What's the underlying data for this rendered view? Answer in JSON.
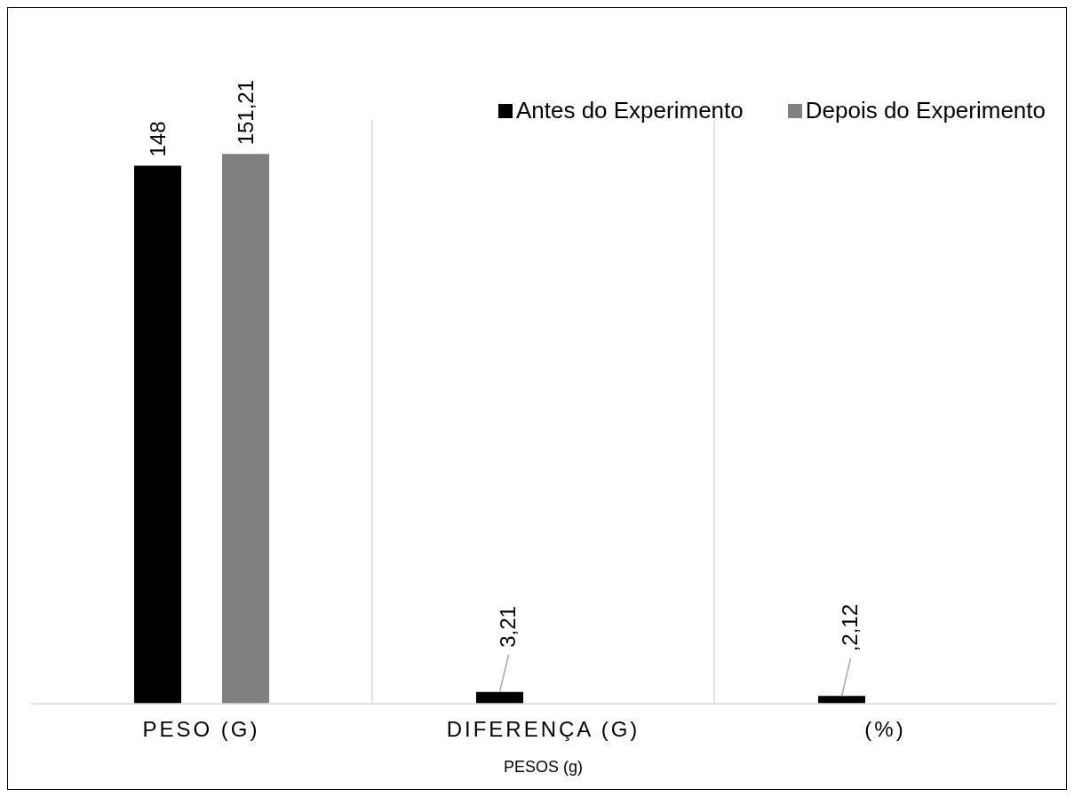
{
  "chart_data": {
    "type": "bar",
    "xlabel": "PESOS (g)",
    "categories": [
      "PESO (G)",
      "DIFERENÇA (G)",
      "(%)"
    ],
    "series": [
      {
        "name": "Antes do Experimento",
        "color": "#000000",
        "values": [
          148,
          3.21,
          2.12
        ],
        "value_labels": [
          "148",
          "3,21",
          ",2,12"
        ]
      },
      {
        "name": "Depois do Experimento",
        "color": "#808080",
        "values": [
          151.21,
          null,
          null
        ],
        "value_labels": [
          "151,21",
          null,
          null
        ]
      }
    ],
    "grid": "x",
    "legend": "top right"
  }
}
